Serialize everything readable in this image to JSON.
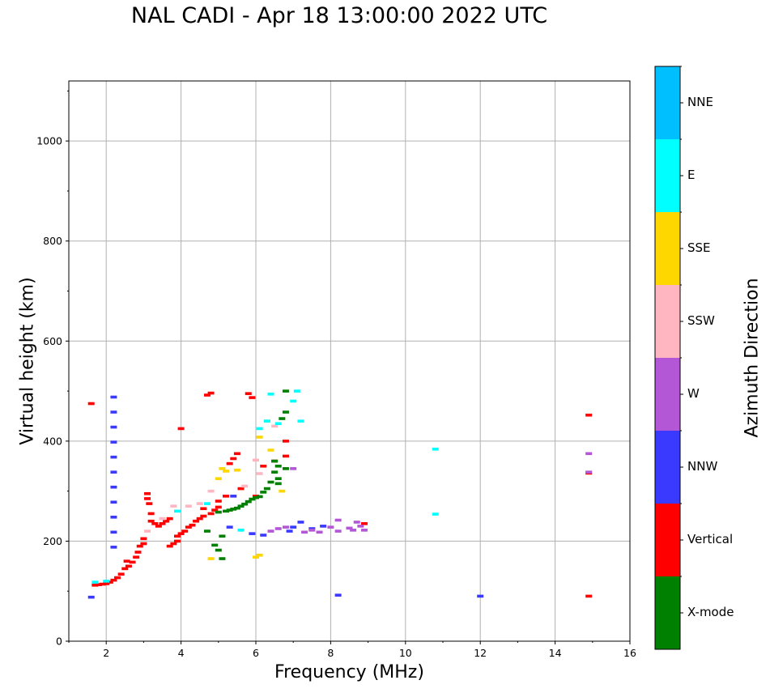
{
  "chart_data": {
    "type": "scatter",
    "title": "NAL CADI - Apr 18 13:00:00 2022 UTC",
    "xlabel": "Frequency (MHz)",
    "ylabel": "Virtual height (km)",
    "xlim": [
      1,
      16
    ],
    "ylim": [
      0,
      1120
    ],
    "xticks": [
      2,
      4,
      6,
      8,
      10,
      12,
      14,
      16
    ],
    "yticks": [
      0,
      200,
      400,
      600,
      800,
      1000
    ],
    "grid": true,
    "colorbar": {
      "title": "Azimuth Direction",
      "categories": [
        {
          "name": "X-mode",
          "color": "#008000"
        },
        {
          "name": "Vertical",
          "color": "#ff0000"
        },
        {
          "name": "NNW",
          "color": "#3a3aff"
        },
        {
          "name": "W",
          "color": "#b357d6"
        },
        {
          "name": "SSW",
          "color": "#ffb6c1"
        },
        {
          "name": "SSE",
          "color": "#ffd700"
        },
        {
          "name": "E",
          "color": "#00ffff"
        },
        {
          "name": "NNE",
          "color": "#00bfff"
        }
      ]
    },
    "series": [
      {
        "name": "Vertical",
        "points": [
          [
            1.6,
            475
          ],
          [
            1.7,
            112
          ],
          [
            1.8,
            113
          ],
          [
            1.9,
            114
          ],
          [
            2.0,
            115
          ],
          [
            2.1,
            118
          ],
          [
            2.2,
            122
          ],
          [
            2.3,
            127
          ],
          [
            2.4,
            134
          ],
          [
            2.5,
            145
          ],
          [
            2.55,
            160
          ],
          [
            2.6,
            150
          ],
          [
            2.7,
            158
          ],
          [
            2.8,
            168
          ],
          [
            2.85,
            178
          ],
          [
            2.9,
            190
          ],
          [
            3.0,
            205
          ],
          [
            3.0,
            195
          ],
          [
            3.1,
            285
          ],
          [
            3.1,
            295
          ],
          [
            3.15,
            275
          ],
          [
            3.2,
            255
          ],
          [
            3.2,
            240
          ],
          [
            3.3,
            235
          ],
          [
            3.4,
            230
          ],
          [
            3.5,
            235
          ],
          [
            3.6,
            240
          ],
          [
            3.7,
            245
          ],
          [
            3.7,
            190
          ],
          [
            3.8,
            195
          ],
          [
            3.9,
            200
          ],
          [
            3.9,
            210
          ],
          [
            4.0,
            215
          ],
          [
            4.0,
            425
          ],
          [
            4.1,
            220
          ],
          [
            4.2,
            228
          ],
          [
            4.3,
            232
          ],
          [
            4.4,
            240
          ],
          [
            4.5,
            245
          ],
          [
            4.6,
            250
          ],
          [
            4.6,
            265
          ],
          [
            4.7,
            492
          ],
          [
            4.8,
            496
          ],
          [
            4.8,
            255
          ],
          [
            4.9,
            262
          ],
          [
            5.0,
            268
          ],
          [
            5.0,
            280
          ],
          [
            5.2,
            290
          ],
          [
            5.3,
            355
          ],
          [
            5.4,
            365
          ],
          [
            5.5,
            375
          ],
          [
            5.6,
            305
          ],
          [
            5.8,
            495
          ],
          [
            5.9,
            487
          ],
          [
            6.0,
            290
          ],
          [
            6.2,
            350
          ],
          [
            6.5,
            360
          ],
          [
            6.8,
            400
          ],
          [
            6.8,
            370
          ],
          [
            8.9,
            235
          ],
          [
            14.9,
            452
          ],
          [
            14.9,
            336
          ],
          [
            14.9,
            90
          ]
        ]
      },
      {
        "name": "X-mode",
        "points": [
          [
            4.7,
            220
          ],
          [
            4.9,
            192
          ],
          [
            5.0,
            182
          ],
          [
            5.0,
            258
          ],
          [
            5.1,
            210
          ],
          [
            5.1,
            165
          ],
          [
            5.2,
            260
          ],
          [
            5.3,
            262
          ],
          [
            5.4,
            264
          ],
          [
            5.5,
            266
          ],
          [
            5.6,
            270
          ],
          [
            5.7,
            274
          ],
          [
            5.8,
            279
          ],
          [
            5.9,
            284
          ],
          [
            6.0,
            287
          ],
          [
            6.1,
            289
          ],
          [
            6.2,
            298
          ],
          [
            6.3,
            305
          ],
          [
            6.4,
            318
          ],
          [
            6.5,
            338
          ],
          [
            6.5,
            360
          ],
          [
            6.6,
            315
          ],
          [
            6.6,
            325
          ],
          [
            6.6,
            350
          ],
          [
            6.7,
            445
          ],
          [
            6.8,
            458
          ],
          [
            6.8,
            500
          ],
          [
            6.8,
            345
          ]
        ]
      },
      {
        "name": "NNW",
        "points": [
          [
            1.6,
            88
          ],
          [
            2.2,
            488
          ],
          [
            2.2,
            458
          ],
          [
            2.2,
            428
          ],
          [
            2.2,
            398
          ],
          [
            2.2,
            368
          ],
          [
            2.2,
            338
          ],
          [
            2.2,
            308
          ],
          [
            2.2,
            278
          ],
          [
            2.2,
            248
          ],
          [
            2.2,
            218
          ],
          [
            2.2,
            188
          ],
          [
            5.3,
            228
          ],
          [
            5.4,
            290
          ],
          [
            5.9,
            215
          ],
          [
            6.2,
            212
          ],
          [
            6.9,
            220
          ],
          [
            7.0,
            228
          ],
          [
            7.2,
            238
          ],
          [
            7.5,
            225
          ],
          [
            7.8,
            230
          ],
          [
            8.2,
            92
          ],
          [
            12.0,
            90
          ]
        ]
      },
      {
        "name": "W",
        "points": [
          [
            6.4,
            220
          ],
          [
            6.6,
            225
          ],
          [
            6.8,
            228
          ],
          [
            7.0,
            345
          ],
          [
            7.3,
            218
          ],
          [
            7.5,
            222
          ],
          [
            7.7,
            218
          ],
          [
            8.0,
            228
          ],
          [
            8.2,
            220
          ],
          [
            8.2,
            242
          ],
          [
            8.5,
            226
          ],
          [
            8.6,
            222
          ],
          [
            8.7,
            238
          ],
          [
            8.8,
            230
          ],
          [
            8.9,
            222
          ],
          [
            14.9,
            375
          ],
          [
            14.9,
            338
          ]
        ]
      },
      {
        "name": "SSW",
        "points": [
          [
            3.1,
            220
          ],
          [
            3.5,
            245
          ],
          [
            3.8,
            270
          ],
          [
            4.2,
            270
          ],
          [
            4.5,
            275
          ],
          [
            4.8,
            300
          ],
          [
            5.7,
            310
          ],
          [
            6.0,
            362
          ],
          [
            6.1,
            335
          ],
          [
            6.5,
            430
          ]
        ]
      },
      {
        "name": "SSE",
        "points": [
          [
            4.8,
            165
          ],
          [
            5.0,
            325
          ],
          [
            5.1,
            345
          ],
          [
            5.2,
            340
          ],
          [
            5.5,
            342
          ],
          [
            6.0,
            168
          ],
          [
            6.1,
            172
          ],
          [
            6.1,
            408
          ],
          [
            6.3,
            440
          ],
          [
            6.4,
            382
          ],
          [
            6.7,
            300
          ]
        ]
      },
      {
        "name": "E",
        "points": [
          [
            1.7,
            118
          ],
          [
            2.0,
            120
          ],
          [
            3.9,
            260
          ],
          [
            4.7,
            275
          ],
          [
            5.6,
            222
          ],
          [
            6.1,
            425
          ],
          [
            6.3,
            440
          ],
          [
            6.4,
            494
          ],
          [
            6.6,
            435
          ],
          [
            7.0,
            480
          ],
          [
            7.1,
            500
          ],
          [
            7.2,
            440
          ],
          [
            10.8,
            384
          ],
          [
            10.8,
            254
          ]
        ]
      }
    ]
  }
}
